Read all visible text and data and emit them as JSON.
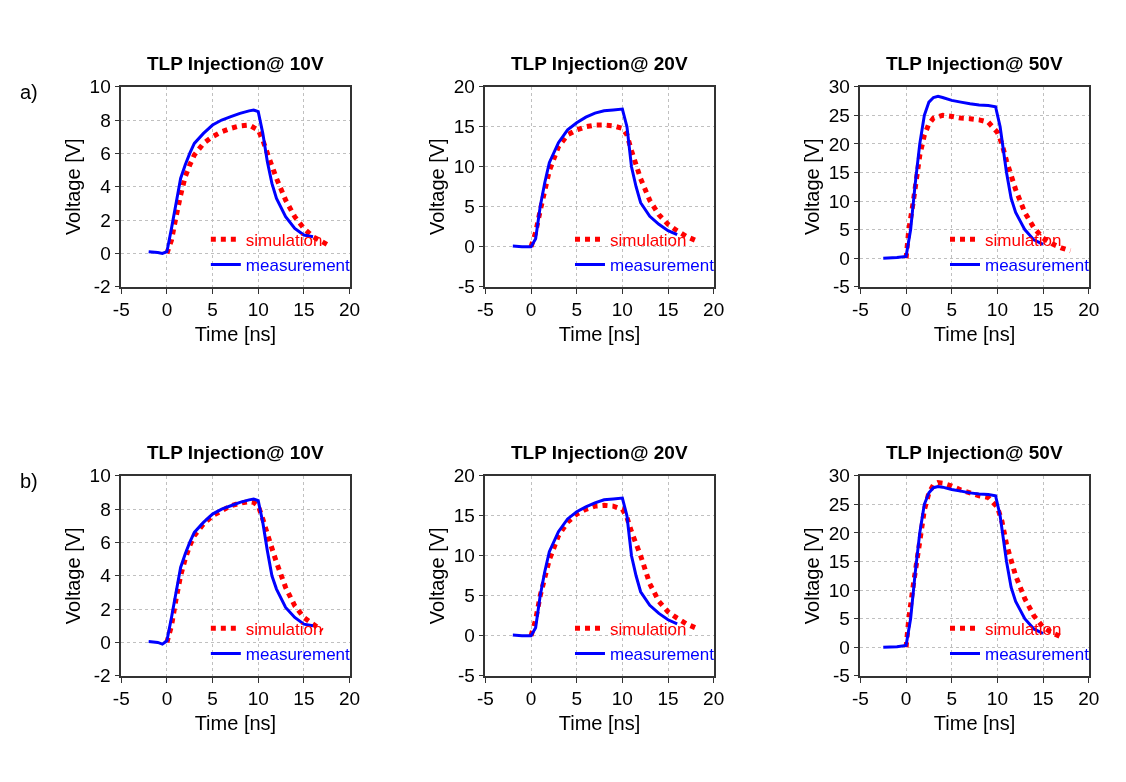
{
  "chart_data": [
    {
      "type": "line",
      "title": "TLP Injection@ 10V",
      "xlabel": "Time [ns]",
      "ylabel": "Voltage [V]",
      "annotations": [
        "a)"
      ],
      "xlim": [
        -5,
        20
      ],
      "xticks": [
        -5,
        0,
        5,
        10,
        15,
        20
      ],
      "ylim": [
        -2,
        10
      ],
      "yticks": [
        -2,
        0,
        2,
        4,
        6,
        8,
        10
      ],
      "grid": true,
      "legend": "bottom right",
      "marker": "none",
      "series": [
        {
          "name": "simulation",
          "color": "#ff0000",
          "line_style": "dotted",
          "x": [
            0,
            0.5,
            1,
            1.5,
            2,
            2.5,
            3,
            4,
            5,
            6,
            7,
            8,
            9,
            10,
            10.5,
            11,
            12,
            13,
            14,
            15,
            16,
            17,
            18
          ],
          "values": [
            0,
            0.8,
            2.2,
            3.5,
            4.6,
            5.3,
            5.9,
            6.6,
            7.0,
            7.3,
            7.5,
            7.65,
            7.7,
            7.4,
            6.8,
            6.0,
            4.5,
            3.2,
            2.2,
            1.5,
            1.0,
            0.7,
            0.4
          ]
        },
        {
          "name": "measurement",
          "color": "#0000ff",
          "line_style": "solid",
          "x": [
            -2,
            -1,
            -0.5,
            0,
            0.5,
            1,
            1.5,
            2,
            2.5,
            3,
            4,
            5,
            6,
            7,
            8,
            9,
            9.5,
            10,
            10.5,
            11,
            11.5,
            12,
            13,
            14,
            15,
            16
          ],
          "values": [
            0.1,
            0.05,
            0,
            0.1,
            1.5,
            3,
            4.5,
            5.3,
            6,
            6.6,
            7.2,
            7.7,
            8.0,
            8.2,
            8.4,
            8.55,
            8.6,
            8.5,
            7.2,
            5.5,
            4.2,
            3.3,
            2.2,
            1.5,
            1.1,
            1.0
          ]
        }
      ]
    },
    {
      "type": "line",
      "title": "TLP Injection@ 20V",
      "xlabel": "Time [ns]",
      "ylabel": "Voltage [V]",
      "xlim": [
        -5,
        20
      ],
      "xticks": [
        -5,
        0,
        5,
        10,
        15,
        20
      ],
      "ylim": [
        -5,
        20
      ],
      "yticks": [
        -5,
        0,
        5,
        10,
        15,
        20
      ],
      "grid": true,
      "legend": "bottom right",
      "marker": "none",
      "series": [
        {
          "name": "simulation",
          "color": "#ff0000",
          "line_style": "dotted",
          "x": [
            0,
            0.5,
            1,
            2,
            3,
            4,
            5,
            6,
            7,
            8,
            9,
            10,
            10.5,
            11,
            12,
            13,
            14,
            15,
            16,
            17,
            18
          ],
          "values": [
            0,
            1.8,
            4.5,
            9.5,
            12.5,
            14,
            14.6,
            15,
            15.2,
            15.2,
            15.1,
            14.8,
            14,
            12,
            8.5,
            5.8,
            4,
            2.8,
            2,
            1.3,
            0.8
          ]
        },
        {
          "name": "measurement",
          "color": "#0000ff",
          "line_style": "solid",
          "x": [
            -2,
            -1,
            0,
            0.5,
            1,
            1.5,
            2,
            3,
            4,
            5,
            6,
            7,
            8,
            9,
            10,
            10.5,
            11,
            11.5,
            12,
            13,
            14,
            15,
            16
          ],
          "values": [
            0.1,
            0,
            0,
            1,
            5,
            8,
            10.5,
            13,
            14.6,
            15.5,
            16.2,
            16.7,
            17,
            17.1,
            17.2,
            15,
            10,
            7.5,
            5.5,
            3.8,
            2.8,
            2,
            1.5
          ]
        }
      ]
    },
    {
      "type": "line",
      "title": "TLP Injection@ 50V",
      "xlabel": "Time [ns]",
      "ylabel": "Voltage [V]",
      "xlim": [
        -5,
        20
      ],
      "xticks": [
        -5,
        0,
        5,
        10,
        15,
        20
      ],
      "ylim": [
        -5,
        30
      ],
      "yticks": [
        -5,
        0,
        5,
        10,
        15,
        20,
        25,
        30
      ],
      "grid": true,
      "legend": "bottom right",
      "marker": "none",
      "series": [
        {
          "name": "simulation",
          "color": "#ff0000",
          "line_style": "dotted",
          "x": [
            0,
            0.3,
            0.8,
            1.5,
            2,
            2.5,
            3,
            4,
            5,
            6,
            7,
            8,
            9,
            10,
            10.5,
            11,
            12,
            13,
            14,
            15,
            16,
            17,
            18
          ],
          "values": [
            0,
            5,
            10,
            18,
            21.5,
            23.5,
            24.5,
            25,
            24.8,
            24.5,
            24.4,
            24.2,
            23.8,
            22,
            20,
            17,
            12,
            8,
            5.3,
            3.5,
            2.5,
            1.8,
            1.3
          ]
        },
        {
          "name": "measurement",
          "color": "#0000ff",
          "line_style": "solid",
          "x": [
            -2.5,
            -1,
            0,
            0.5,
            1,
            1.5,
            2,
            2.5,
            3,
            3.5,
            4,
            5,
            6,
            7,
            8,
            9,
            9.8,
            10.3,
            11,
            11.5,
            12,
            13,
            14,
            15
          ],
          "values": [
            0,
            0.1,
            0.3,
            5,
            13,
            20,
            25,
            27.3,
            28.1,
            28.3,
            28.1,
            27.6,
            27.3,
            27,
            26.8,
            26.7,
            26.5,
            23,
            15,
            10.5,
            8,
            5,
            3.2,
            2.4
          ]
        }
      ]
    },
    {
      "type": "line",
      "title": "TLP Injection@ 10V",
      "xlabel": "Time [ns]",
      "ylabel": "Voltage [V]",
      "annotations": [
        "b)"
      ],
      "xlim": [
        -5,
        20
      ],
      "xticks": [
        -5,
        0,
        5,
        10,
        15,
        20
      ],
      "ylim": [
        -2,
        10
      ],
      "yticks": [
        -2,
        0,
        2,
        4,
        6,
        8,
        10
      ],
      "grid": true,
      "legend": "bottom right",
      "marker": "none",
      "series": [
        {
          "name": "simulation",
          "color": "#ff0000",
          "line_style": "dotted",
          "x": [
            0,
            0.5,
            1,
            1.5,
            2,
            2.5,
            3,
            4,
            5,
            6,
            7,
            8,
            9,
            9.5,
            10,
            10.5,
            11,
            12,
            13,
            14,
            15,
            16,
            17
          ],
          "values": [
            0,
            1,
            2.6,
            4,
            5,
            5.8,
            6.4,
            7.1,
            7.6,
            7.9,
            8.2,
            8.35,
            8.45,
            8.4,
            8.2,
            7.4,
            6.5,
            4.8,
            3.3,
            2.2,
            1.5,
            1.1,
            0.7
          ]
        },
        {
          "name": "measurement",
          "color": "#0000ff",
          "line_style": "solid",
          "x": [
            -2,
            -1,
            -0.5,
            0,
            0.5,
            1,
            1.5,
            2,
            2.5,
            3,
            4,
            5,
            6,
            7,
            8,
            9,
            9.5,
            10,
            10.5,
            11,
            11.5,
            12,
            13,
            14,
            15,
            16
          ],
          "values": [
            0.05,
            0,
            -0.1,
            0.1,
            1.5,
            3,
            4.5,
            5.3,
            6,
            6.6,
            7.2,
            7.7,
            8.0,
            8.2,
            8.4,
            8.55,
            8.6,
            8.5,
            7.2,
            5.5,
            4.0,
            3.2,
            2.1,
            1.5,
            1.1,
            1.0
          ]
        }
      ]
    },
    {
      "type": "line",
      "title": "TLP Injection@ 20V",
      "xlabel": "Time [ns]",
      "ylabel": "Voltage [V]",
      "xlim": [
        -5,
        20
      ],
      "xticks": [
        -5,
        0,
        5,
        10,
        15,
        20
      ],
      "ylim": [
        -5,
        20
      ],
      "yticks": [
        -5,
        0,
        5,
        10,
        15,
        20
      ],
      "grid": true,
      "legend": "bottom right",
      "marker": "none",
      "series": [
        {
          "name": "simulation",
          "color": "#ff0000",
          "line_style": "dotted",
          "x": [
            0,
            0.5,
            1,
            2,
            3,
            4,
            5,
            6,
            7,
            8,
            9,
            10,
            10.5,
            11,
            12,
            13,
            14,
            15,
            16,
            17,
            18
          ],
          "values": [
            0,
            2,
            5,
            9.5,
            12.5,
            14.2,
            15.2,
            15.8,
            16.2,
            16.3,
            16.2,
            15.8,
            14.8,
            13,
            10,
            6.5,
            4.3,
            3,
            2.2,
            1.5,
            1.0
          ]
        },
        {
          "name": "measurement",
          "color": "#0000ff",
          "line_style": "solid",
          "x": [
            -2,
            -1,
            0,
            0.5,
            1,
            1.5,
            2,
            3,
            4,
            5,
            6,
            7,
            8,
            9,
            10,
            10.5,
            11,
            11.5,
            12,
            13,
            14,
            15,
            16
          ],
          "values": [
            0.1,
            0,
            0,
            1,
            5,
            8,
            10.5,
            13,
            14.6,
            15.5,
            16.1,
            16.6,
            17,
            17.1,
            17.2,
            15,
            10,
            7.5,
            5.5,
            3.8,
            2.8,
            2,
            1.5
          ]
        }
      ]
    },
    {
      "type": "line",
      "title": "TLP Injection@ 50V",
      "xlabel": "Time [ns]",
      "ylabel": "Voltage [V]",
      "xlim": [
        -5,
        20
      ],
      "xticks": [
        -5,
        0,
        5,
        10,
        15,
        20
      ],
      "ylim": [
        -5,
        30
      ],
      "yticks": [
        -5,
        0,
        5,
        10,
        15,
        20,
        25,
        30
      ],
      "grid": true,
      "legend": "bottom right",
      "marker": "none",
      "series": [
        {
          "name": "simulation",
          "color": "#ff0000",
          "line_style": "dotted",
          "x": [
            0,
            0.3,
            0.8,
            1.5,
            2,
            2.5,
            3,
            3.5,
            4,
            5,
            6,
            7,
            8,
            9,
            10,
            10.5,
            11,
            12,
            13,
            14,
            15,
            16,
            17
          ],
          "values": [
            0,
            5,
            11,
            18.5,
            24,
            27,
            28.4,
            28.8,
            28.7,
            28.2,
            27.5,
            27,
            26.5,
            26.2,
            24.5,
            22,
            18,
            12.5,
            8.5,
            5.5,
            3.5,
            2.5,
            1.8
          ]
        },
        {
          "name": "measurement",
          "color": "#0000ff",
          "line_style": "solid",
          "x": [
            -2.5,
            -1,
            0,
            0.5,
            1,
            1.5,
            2,
            2.5,
            3,
            3.5,
            4,
            5,
            6,
            7,
            8,
            9,
            9.8,
            10.3,
            11,
            11.5,
            12,
            13,
            14,
            15
          ],
          "values": [
            0,
            0.1,
            0.3,
            5,
            13,
            20,
            25,
            27,
            27.9,
            28.1,
            28.0,
            27.6,
            27.3,
            27,
            26.8,
            26.7,
            26.5,
            23,
            15,
            10.5,
            8,
            5,
            3.2,
            2.4
          ]
        }
      ]
    }
  ]
}
